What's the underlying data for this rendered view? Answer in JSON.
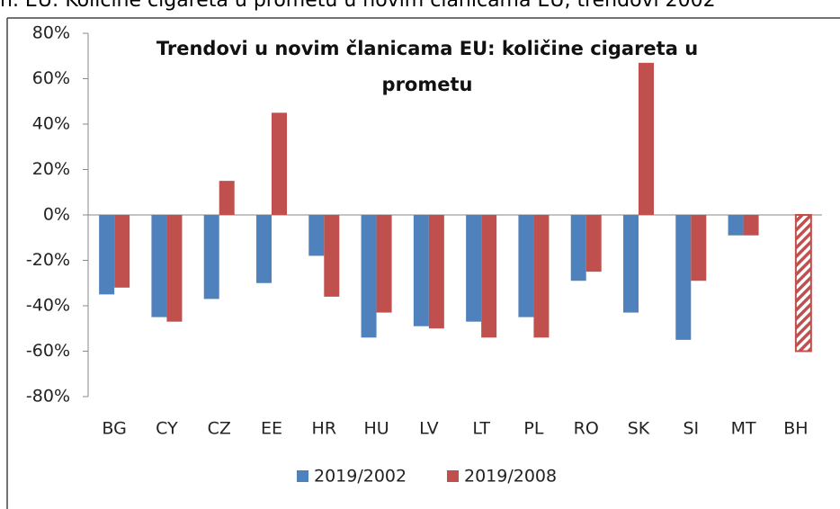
{
  "caption": "n. EU: Količine cigareta u prometu u novim članicama EU, trendovi 2002",
  "chart_data": {
    "type": "bar",
    "title": "Trendovi u novim članicama EU: količine cigareta u prometu",
    "categories": [
      "BG",
      "CY",
      "CZ",
      "EE",
      "HR",
      "HU",
      "LV",
      "LT",
      "PL",
      "RO",
      "SK",
      "SI",
      "MT",
      "BH"
    ],
    "series": [
      {
        "name": "2019/2002",
        "color": "#4f81bd",
        "values": [
          -35,
          -45,
          -37,
          -30,
          -18,
          -54,
          -49,
          -47,
          -45,
          -29,
          -43,
          -55,
          -9,
          null
        ]
      },
      {
        "name": "2019/2008",
        "color": "#c0504d",
        "hatched_last": true,
        "values": [
          -32,
          -47,
          15,
          45,
          -36,
          -43,
          -50,
          -54,
          -54,
          -25,
          67,
          -29,
          -9,
          -60
        ]
      }
    ],
    "ylim": [
      -80,
      80
    ],
    "yticks": [
      {
        "value": -80,
        "label": "-80%"
      },
      {
        "value": -60,
        "label": "-60%"
      },
      {
        "value": -40,
        "label": "-40%"
      },
      {
        "value": -20,
        "label": "-20%"
      },
      {
        "value": 0,
        "label": "0%"
      },
      {
        "value": 20,
        "label": "20%"
      },
      {
        "value": 40,
        "label": "40%"
      },
      {
        "value": 60,
        "label": "60%"
      },
      {
        "value": 80,
        "label": "80%"
      }
    ],
    "legend": "bottom"
  }
}
